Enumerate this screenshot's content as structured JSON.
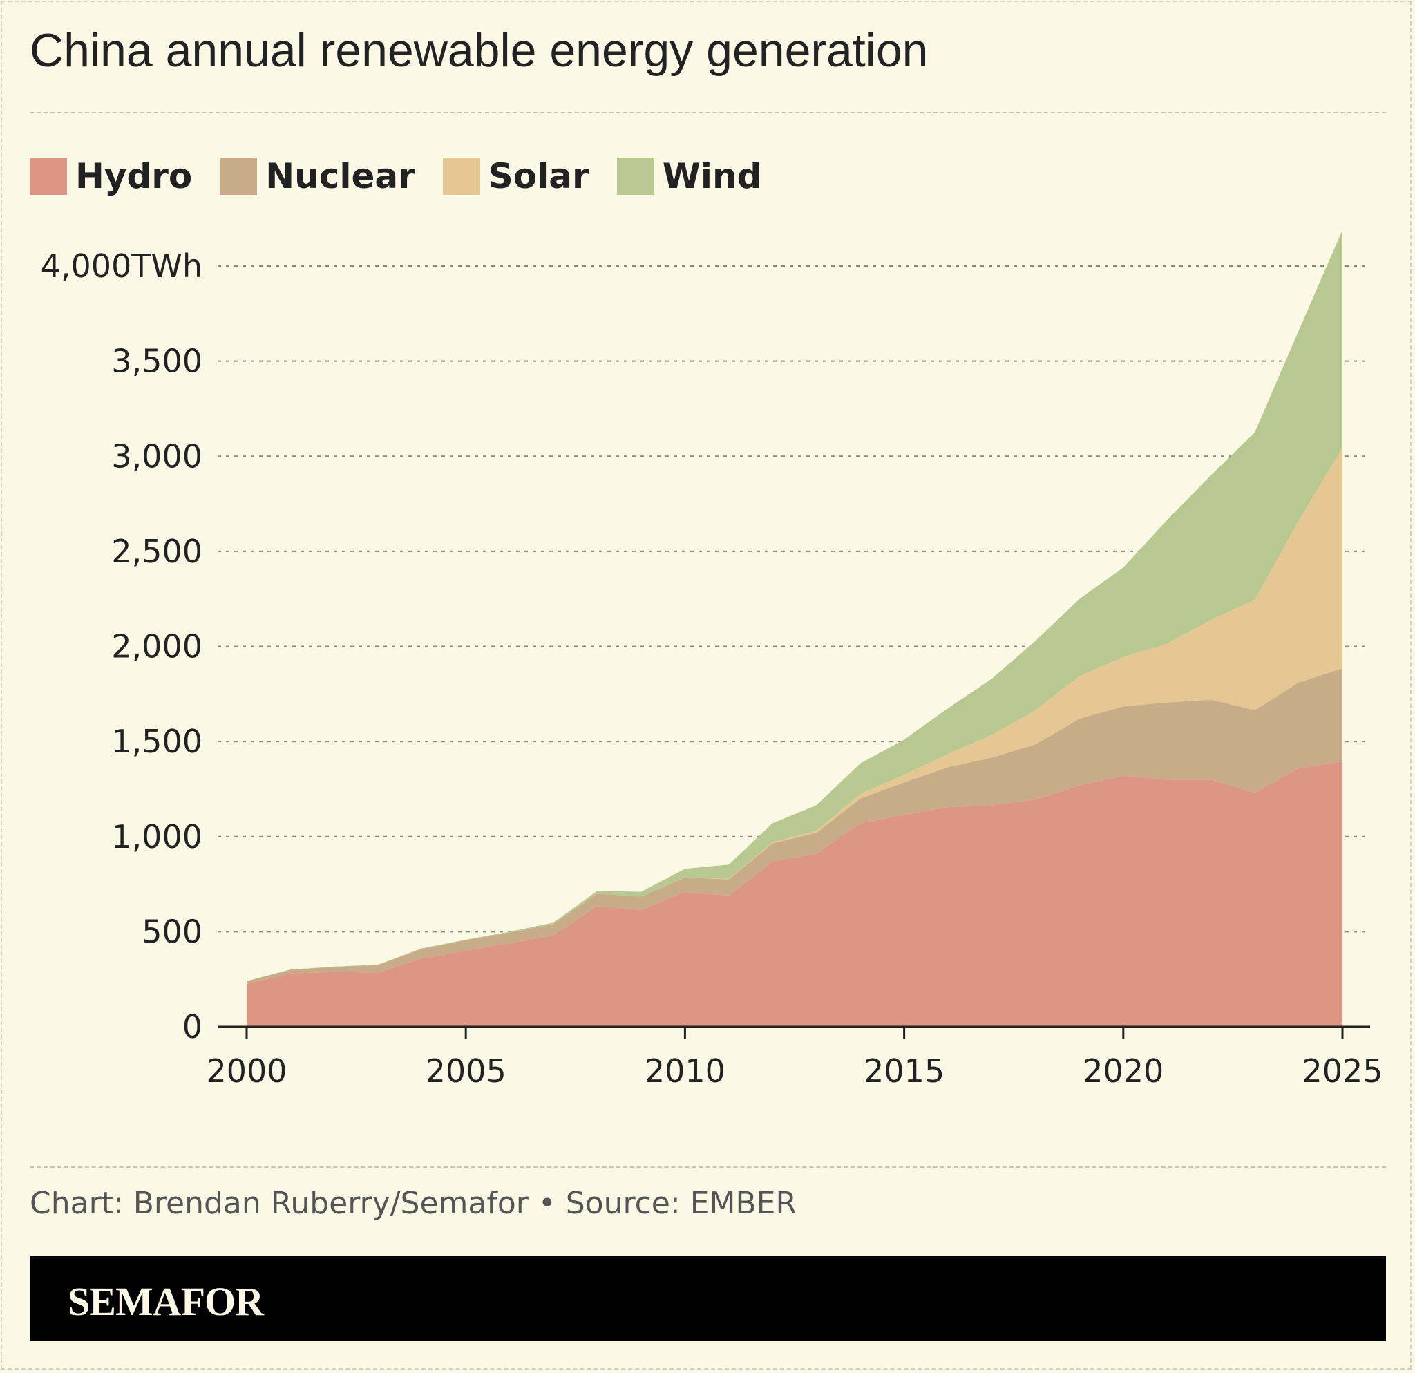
{
  "title": "China annual renewable energy generation",
  "legend": [
    {
      "label": "Hydro",
      "color": "#dd9683"
    },
    {
      "label": "Nuclear",
      "color": "#c8ab88"
    },
    {
      "label": "Solar",
      "color": "#e4c793"
    },
    {
      "label": "Wind",
      "color": "#b7c991"
    }
  ],
  "credit": "Chart: Brendan Ruberry/Semafor • Source: EMBER",
  "brand": {
    "name": "SEMAFOR"
  },
  "chart_data": {
    "type": "area",
    "stacked": true,
    "title": "China annual renewable energy generation",
    "x": [
      2000,
      2001,
      2002,
      2003,
      2004,
      2005,
      2006,
      2007,
      2008,
      2009,
      2010,
      2011,
      2012,
      2013,
      2014,
      2015,
      2016,
      2017,
      2018,
      2019,
      2020,
      2021,
      2022,
      2023,
      2024,
      2025
    ],
    "xticks": [
      "2000",
      "2005",
      "2010",
      "2015",
      "2020",
      "2025"
    ],
    "xlim": [
      2000,
      2025
    ],
    "ylim": [
      0,
      4000
    ],
    "yticks": [
      "0",
      "500",
      "1,000",
      "1,500",
      "2,000",
      "2,500",
      "3,000",
      "3,500",
      "4,000TWh"
    ],
    "grid": true,
    "legend_position": "top-left",
    "series": [
      {
        "name": "Hydro",
        "color": "#dd9683",
        "values": [
          225,
          280,
          290,
          285,
          360,
          400,
          440,
          480,
          635,
          615,
          710,
          690,
          870,
          910,
          1070,
          1115,
          1155,
          1165,
          1195,
          1270,
          1320,
          1300,
          1300,
          1230,
          1360,
          1395
        ]
      },
      {
        "name": "Nuclear",
        "color": "#c8ab88",
        "values": [
          15,
          20,
          25,
          40,
          50,
          55,
          55,
          60,
          65,
          70,
          75,
          85,
          95,
          110,
          130,
          170,
          210,
          250,
          290,
          350,
          365,
          405,
          420,
          435,
          450,
          490
        ]
      },
      {
        "name": "Solar",
        "color": "#e4c793",
        "values": [
          0,
          0,
          0,
          0,
          0,
          0,
          0,
          0,
          0,
          0,
          1,
          3,
          6,
          10,
          25,
          40,
          70,
          120,
          180,
          225,
          260,
          310,
          420,
          580,
          850,
          1160
        ]
      },
      {
        "name": "Wind",
        "color": "#b7c991",
        "values": [
          1,
          1,
          2,
          2,
          3,
          3,
          5,
          8,
          15,
          25,
          45,
          75,
          100,
          135,
          160,
          185,
          240,
          295,
          365,
          405,
          470,
          650,
          760,
          880,
          1000,
          1145
        ]
      }
    ]
  }
}
